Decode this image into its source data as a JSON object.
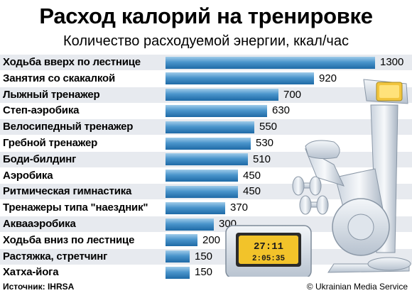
{
  "title": "Расход калорий на тренировке",
  "subtitle": "Количество расходуемой энергии, ккал/час",
  "chart_data": {
    "type": "bar",
    "orientation": "horizontal",
    "title": "Расход калорий на тренировке",
    "subtitle": "Количество расходуемой энергии, ккал/час",
    "categories": [
      "Ходьба вверх по лестнице",
      "Занятия со скакалкой",
      "Лыжный тренажер",
      "Степ-аэробика",
      "Велосипедный тренажер",
      "Гребной тренажер",
      "Боди-билдинг",
      "Аэробика",
      "Ритмическая гимнастика",
      "Тренажеры типа \"наездник\"",
      "Аквааэробика",
      "Ходьба вниз по лестнице",
      "Растяжка, стретчинг",
      "Хатха-йога"
    ],
    "values": [
      1300,
      920,
      700,
      630,
      550,
      530,
      510,
      450,
      450,
      370,
      300,
      200,
      150,
      150
    ],
    "xlim": [
      0,
      1300
    ],
    "grid": false,
    "legend": "none",
    "bar_color": "#2f7fbf"
  },
  "footer": {
    "source": "Источник: IHRSA",
    "credit": "© Ukrainian Media Service"
  },
  "illustration": {
    "name": "exercise-bike",
    "display_line1": "27:11",
    "display_line2": "2:05:35"
  }
}
